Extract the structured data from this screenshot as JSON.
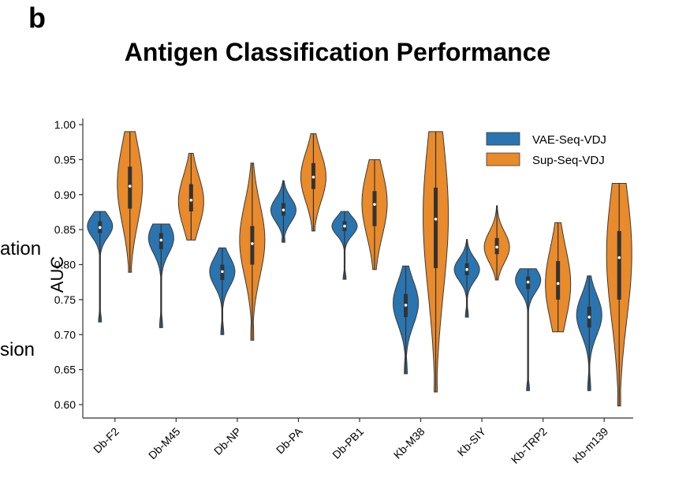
{
  "panel_label": "b",
  "cut_labels": [
    "ation",
    "sion"
  ],
  "chart_data": {
    "type": "violin",
    "title": "Antigen Classification Performance",
    "xlabel": "",
    "ylabel": "AUC",
    "ylim": [
      0.58,
      1.0
    ],
    "yticks": [
      "0.60",
      "0.65",
      "0.70",
      "0.75",
      "0.80",
      "0.85",
      "0.90",
      "0.95",
      "1.00"
    ],
    "categories": [
      "Db-F2",
      "Db-M45",
      "Db-NP",
      "Db-PA",
      "Db-PB1",
      "Kb-M38",
      "Kb-SIY",
      "Kb-TRP2",
      "Kb-m139"
    ],
    "legend_position": "top-right",
    "series": [
      {
        "name": "VAE-Seq-VDJ",
        "color": "#2a75b0",
        "distributions": [
          {
            "min": 0.718,
            "max": 0.876,
            "q1": 0.845,
            "median": 0.853,
            "q3": 0.862,
            "mode": 0.855
          },
          {
            "min": 0.71,
            "max": 0.858,
            "q1": 0.822,
            "median": 0.835,
            "q3": 0.845,
            "mode": 0.838
          },
          {
            "min": 0.7,
            "max": 0.824,
            "q1": 0.778,
            "median": 0.79,
            "q3": 0.8,
            "mode": 0.79
          },
          {
            "min": 0.832,
            "max": 0.92,
            "q1": 0.87,
            "median": 0.878,
            "q3": 0.888,
            "mode": 0.878
          },
          {
            "min": 0.779,
            "max": 0.876,
            "q1": 0.848,
            "median": 0.855,
            "q3": 0.862,
            "mode": 0.855
          },
          {
            "min": 0.644,
            "max": 0.798,
            "q1": 0.725,
            "median": 0.742,
            "q3": 0.758,
            "mode": 0.745
          },
          {
            "min": 0.725,
            "max": 0.836,
            "q1": 0.785,
            "median": 0.793,
            "q3": 0.802,
            "mode": 0.793
          },
          {
            "min": 0.62,
            "max": 0.794,
            "q1": 0.765,
            "median": 0.775,
            "q3": 0.783,
            "mode": 0.778
          },
          {
            "min": 0.62,
            "max": 0.784,
            "q1": 0.71,
            "median": 0.725,
            "q3": 0.74,
            "mode": 0.728
          }
        ]
      },
      {
        "name": "Sup-Seq-VDJ",
        "color": "#e98a2b",
        "distributions": [
          {
            "min": 0.789,
            "max": 0.99,
            "q1": 0.88,
            "median": 0.912,
            "q3": 0.94,
            "mode": 0.915
          },
          {
            "min": 0.835,
            "max": 0.959,
            "q1": 0.876,
            "median": 0.892,
            "q3": 0.915,
            "mode": 0.89
          },
          {
            "min": 0.692,
            "max": 0.945,
            "q1": 0.8,
            "median": 0.83,
            "q3": 0.855,
            "mode": 0.835
          },
          {
            "min": 0.848,
            "max": 0.987,
            "q1": 0.908,
            "median": 0.925,
            "q3": 0.945,
            "mode": 0.925
          },
          {
            "min": 0.793,
            "max": 0.95,
            "q1": 0.855,
            "median": 0.886,
            "q3": 0.905,
            "mode": 0.888
          },
          {
            "min": 0.618,
            "max": 0.99,
            "q1": 0.795,
            "median": 0.865,
            "q3": 0.91,
            "mode": 0.87
          },
          {
            "min": 0.778,
            "max": 0.884,
            "q1": 0.815,
            "median": 0.825,
            "q3": 0.838,
            "mode": 0.825
          },
          {
            "min": 0.704,
            "max": 0.86,
            "q1": 0.75,
            "median": 0.773,
            "q3": 0.805,
            "mode": 0.772
          },
          {
            "min": 0.598,
            "max": 0.916,
            "q1": 0.75,
            "median": 0.81,
            "q3": 0.848,
            "mode": 0.815
          }
        ]
      }
    ]
  }
}
